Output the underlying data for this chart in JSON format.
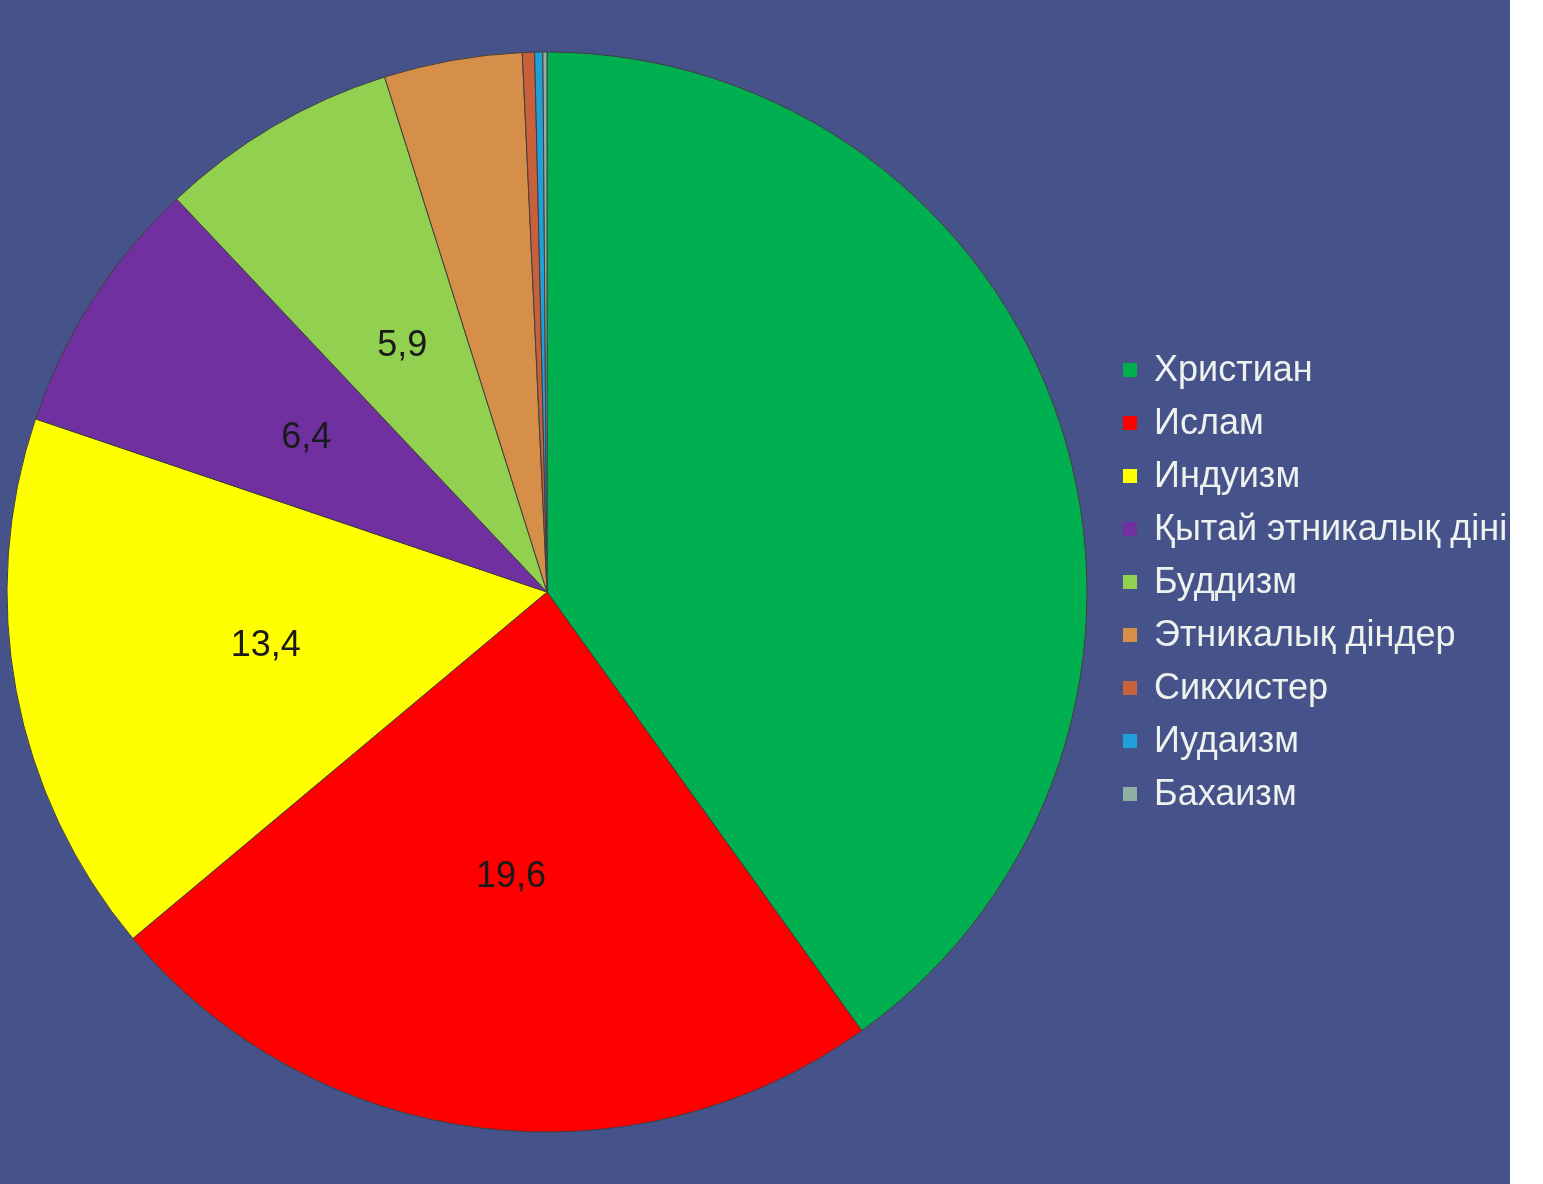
{
  "chart_data": {
    "type": "pie",
    "categories": [
      "Христиан",
      "Ислам",
      "Индуизм",
      "Қытай этникалық діні",
      "Буддизм",
      "Этникалық діндер",
      "Сикхистер",
      "Иудаизм",
      "Бахаизм"
    ],
    "values": [
      33.0,
      19.6,
      13.4,
      6.4,
      5.9,
      3.4,
      0.3,
      0.2,
      0.1
    ],
    "colors": [
      "#00b050",
      "#ff0000",
      "#ffff00",
      "#7030a0",
      "#92d050",
      "#d68f48",
      "#c8603c",
      "#1fa0d8",
      "#8fb0a0"
    ],
    "value_labels": [
      null,
      "19,6",
      "13,4",
      "6,4",
      "5,9",
      null,
      null,
      null,
      null
    ],
    "legend": "right"
  }
}
